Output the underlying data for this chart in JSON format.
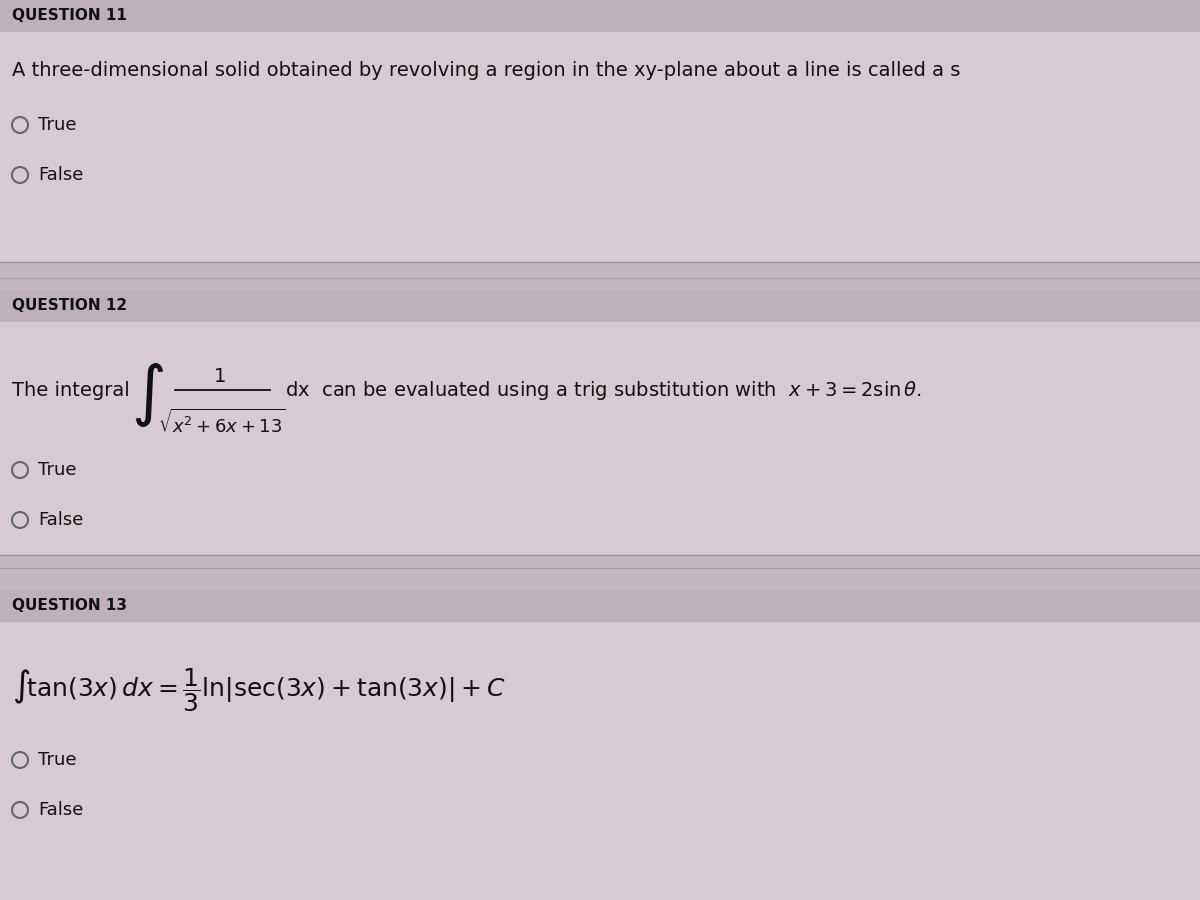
{
  "bg_color": "#cfc0c8",
  "row_light": "#d8cad2",
  "row_dark": "#c4b6be",
  "header_bg": "#bfb1b9",
  "text_color": "#111111",
  "divider_color": "#a09298",
  "q11_header": "QUESTION 11",
  "q11_text": "A three-dimensional solid obtained by revolving a region in the xy-plane about a line is called a s",
  "q11_opt1": "True",
  "q11_opt2": "False",
  "q12_header": "QUESTION 12",
  "q12_opt1": "True",
  "q12_opt2": "False",
  "q13_header": "QUESTION 13",
  "q13_opt1": "True",
  "q13_opt2": "False",
  "header_fontsize": 11,
  "body_fontsize": 14,
  "option_fontsize": 13,
  "formula_fontsize": 16
}
